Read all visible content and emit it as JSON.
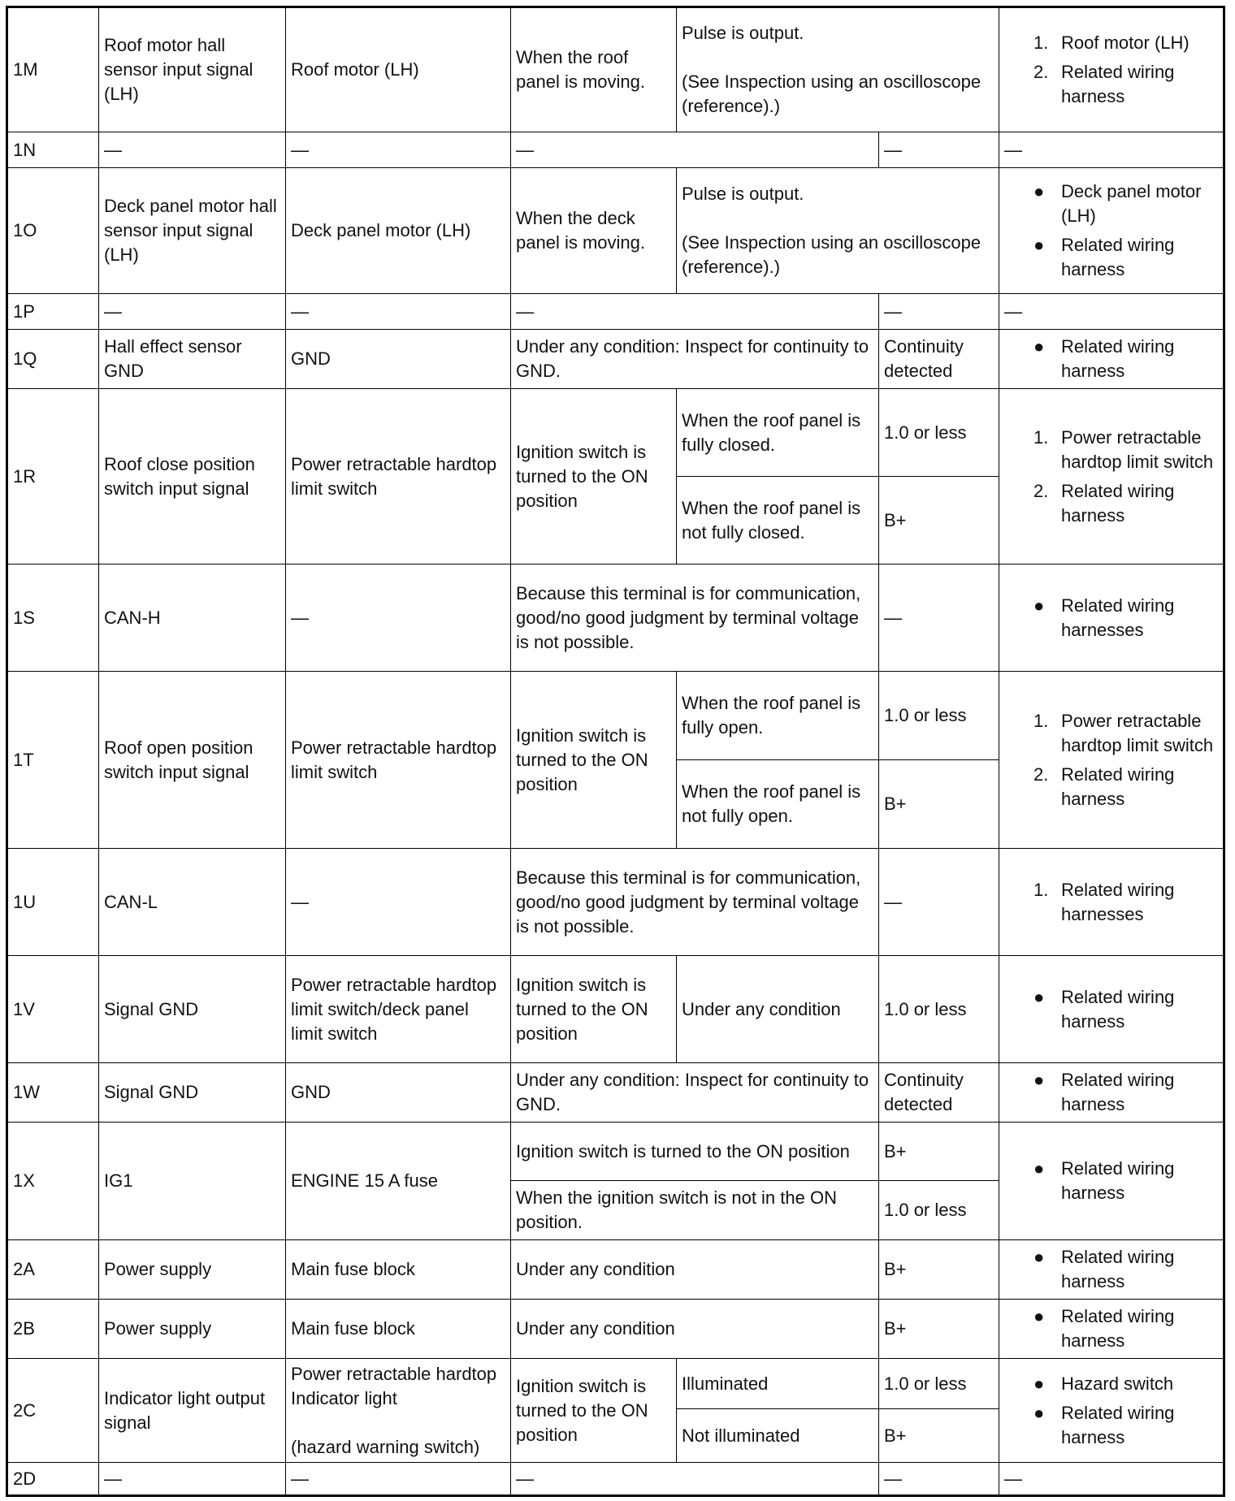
{
  "dash": "—",
  "rows": {
    "1M": {
      "terminal": "1M",
      "signal": "Roof motor hall sensor input signal (LH)",
      "destination": "Roof motor (LH)",
      "condition": "When the roof panel is moving.",
      "value": "Pulse is output.\n\n(See Inspection using an oscilloscope (reference).)",
      "reference": [
        "Roof motor (LH)",
        "Related wiring harness"
      ],
      "markers": [
        "1.",
        "2."
      ]
    },
    "1N": {
      "terminal": "1N"
    },
    "1O": {
      "terminal": "1O",
      "signal": "Deck panel motor hall sensor input signal (LH)",
      "destination": "Deck panel motor (LH)",
      "condition": "When the deck panel is moving.",
      "value": "Pulse is output.\n\n(See Inspection using an oscilloscope (reference).)",
      "reference": [
        "Deck panel motor (LH)",
        "Related wiring harness"
      ],
      "markers": [
        "●",
        "●"
      ]
    },
    "1P": {
      "terminal": "1P"
    },
    "1Q": {
      "terminal": "1Q",
      "signal": "Hall effect sensor GND",
      "destination": "GND",
      "condition": "Under any condition: Inspect for continuity to GND.",
      "value": "Continuity detected",
      "reference": [
        "Related wiring harness"
      ],
      "markers": [
        "●"
      ]
    },
    "1R": {
      "terminal": "1R",
      "signal": "Roof close position switch input signal",
      "destination": "Power retractable hardtop limit switch",
      "condition": "Ignition switch is turned to the ON position",
      "sub": [
        {
          "state": "When the roof panel is fully closed.",
          "value": "1.0 or less"
        },
        {
          "state": "When the roof panel is not fully closed.",
          "value": "B+"
        }
      ],
      "reference": [
        "Power retractable hardtop limit switch",
        "Related wiring harness"
      ],
      "markers": [
        "1.",
        "2."
      ]
    },
    "1S": {
      "terminal": "1S",
      "signal": "CAN-H",
      "destination": "—",
      "condition": "Because this terminal is for communication, good/no good judgment by terminal voltage is not possible.",
      "value": "—",
      "reference": [
        "Related wiring harnesses"
      ],
      "markers": [
        "●"
      ]
    },
    "1T": {
      "terminal": "1T",
      "signal": "Roof open position switch input signal",
      "destination": "Power retractable hardtop limit switch",
      "condition": "Ignition switch is turned to the ON position",
      "sub": [
        {
          "state": "When the roof panel is fully open.",
          "value": "1.0 or less"
        },
        {
          "state": "When the roof panel is not fully open.",
          "value": "B+"
        }
      ],
      "reference": [
        "Power retractable hardtop limit switch",
        "Related wiring harness"
      ],
      "markers": [
        "1.",
        "2."
      ]
    },
    "1U": {
      "terminal": "1U",
      "signal": "CAN-L",
      "destination": "—",
      "condition": "Because this terminal is for communication, good/no good judgment by terminal voltage is not possible.",
      "value": "—",
      "reference": [
        "Related wiring harnesses"
      ],
      "markers": [
        "1."
      ]
    },
    "1V": {
      "terminal": "1V",
      "signal": "Signal GND",
      "destination": "Power retractable hardtop limit switch/deck panel limit switch",
      "condition": "Ignition switch is turned to the ON position",
      "state": "Under any condition",
      "value": "1.0 or less",
      "reference": [
        "Related wiring harness"
      ],
      "markers": [
        "●"
      ]
    },
    "1W": {
      "terminal": "1W",
      "signal": "Signal GND",
      "destination": "GND",
      "condition": "Under any condition: Inspect for continuity to GND.",
      "value": "Continuity detected",
      "reference": [
        "Related wiring harness"
      ],
      "markers": [
        "●"
      ]
    },
    "1X": {
      "terminal": "1X",
      "signal": "IG1",
      "destination": "ENGINE 15 A fuse",
      "sub": [
        {
          "state": "Ignition switch is turned to the ON position",
          "value": "B+"
        },
        {
          "state": "When the ignition switch is not in the ON position.",
          "value": "1.0 or less"
        }
      ],
      "reference": [
        "Related wiring harness"
      ],
      "markers": [
        "●"
      ]
    },
    "2A": {
      "terminal": "2A",
      "signal": "Power supply",
      "destination": "Main fuse block",
      "condition": "Under any condition",
      "value": "B+",
      "reference": [
        "Related wiring harness"
      ],
      "markers": [
        "●"
      ]
    },
    "2B": {
      "terminal": "2B",
      "signal": "Power supply",
      "destination": "Main fuse block",
      "condition": "Under any condition",
      "value": "B+",
      "reference": [
        "Related wiring harness"
      ],
      "markers": [
        "●"
      ]
    },
    "2C": {
      "terminal": "2C",
      "signal": "Indicator light output signal",
      "destination": "Power retractable hardtop Indicator light\n\n(hazard warning switch)",
      "condition": "Ignition switch is turned to the ON position",
      "sub": [
        {
          "state": "Illuminated",
          "value": "1.0 or less"
        },
        {
          "state": "Not illuminated",
          "value": "B+"
        }
      ],
      "reference": [
        "Hazard switch",
        "Related wiring harness"
      ],
      "markers": [
        "●",
        "●"
      ]
    },
    "2D": {
      "terminal": "2D"
    }
  }
}
